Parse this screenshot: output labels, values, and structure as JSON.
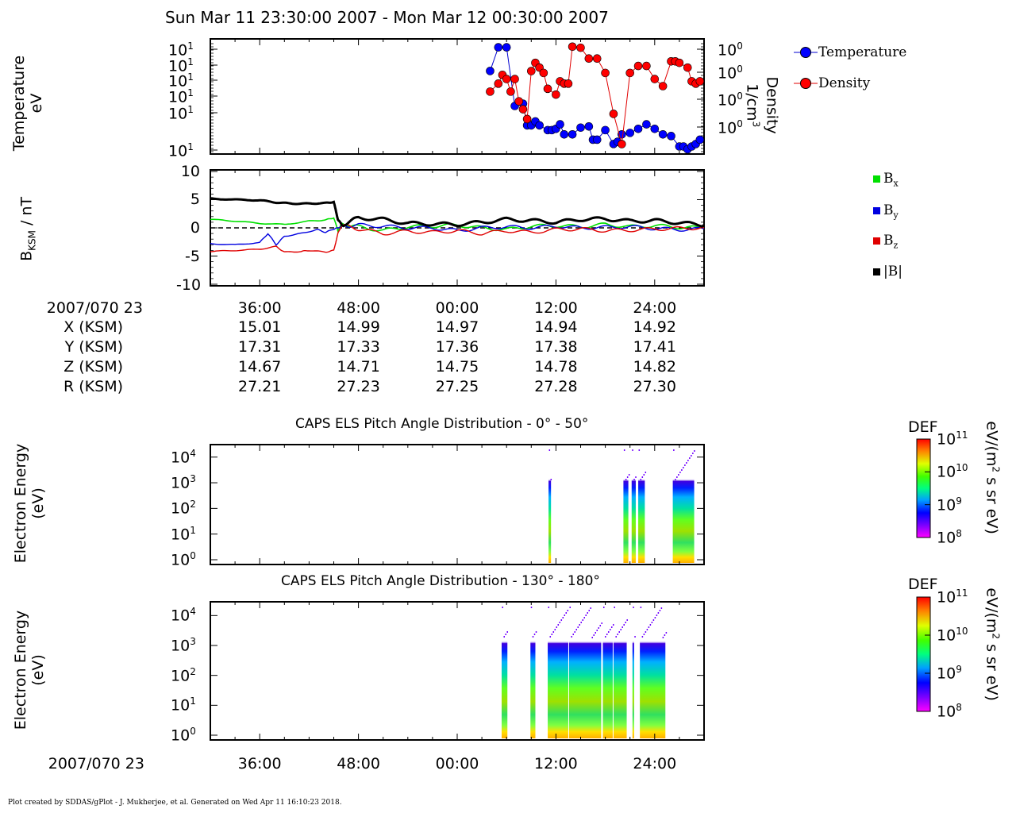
{
  "title": "Sun Mar 11 23:30:00 2007 - Mon Mar 12 00:30:00 2007",
  "footer": "Plot created by SDDAS/gPlot - J. Mukherjee, et al.  Generated on Wed Apr 11 16:10:23 2018.",
  "time_ticks": [
    "36:00",
    "48:00",
    "00:00",
    "12:00",
    "24:00"
  ],
  "date_label": "2007/070 23",
  "colors": {
    "bx": "#00e000",
    "by": "#0000e0",
    "bz": "#e00000",
    "bmag": "#000000",
    "temp": "#0000d0",
    "dens": "#e00000"
  },
  "ephemeris": {
    "rows": [
      {
        "label": "X (KSM)",
        "values": [
          "15.01",
          "14.99",
          "14.97",
          "14.94",
          "14.92"
        ]
      },
      {
        "label": "Y (KSM)",
        "values": [
          "17.31",
          "17.33",
          "17.36",
          "17.38",
          "17.41"
        ]
      },
      {
        "label": "Z (KSM)",
        "values": [
          "14.67",
          "14.71",
          "14.75",
          "14.78",
          "14.82"
        ]
      },
      {
        "label": "R (KSM)",
        "values": [
          "27.21",
          "27.23",
          "27.25",
          "27.28",
          "27.30"
        ]
      }
    ]
  },
  "panel1": {
    "ylabel_line1": "Temperature",
    "ylabel_line2": "eV",
    "y2label_line1": "Density",
    "y2label_line2": "1/cm",
    "y2label_sup": "3",
    "left_tick_base": "10",
    "left_tick_exp": "1",
    "right_tick_base": "10",
    "right_tick_exp": "0",
    "legend": [
      "Temperature",
      "Density"
    ]
  },
  "panel2": {
    "ylabel_main": "B",
    "ylabel_sub": "KSM",
    "ylabel_tail": " / nT",
    "yticks": [
      "10",
      "5",
      "0",
      "-5",
      "-10"
    ],
    "legend": [
      {
        "base": "B",
        "sub": "x"
      },
      {
        "base": "B",
        "sub": "y"
      },
      {
        "base": "B",
        "sub": "z"
      },
      {
        "base": "|B|",
        "sub": ""
      }
    ]
  },
  "spectro1": {
    "title": "CAPS ELS Pitch Angle Distribution - 0° - 50°",
    "ylabel_line1": "Electron Energy",
    "ylabel_line2": "(eV)"
  },
  "spectro2": {
    "title": "CAPS ELS Pitch Angle Distribution - 130° - 180°",
    "ylabel_line1": "Electron Energy",
    "ylabel_line2": "(eV)"
  },
  "energy_ticks": [
    {
      "base": "10",
      "exp": "4"
    },
    {
      "base": "10",
      "exp": "3"
    },
    {
      "base": "10",
      "exp": "2"
    },
    {
      "base": "10",
      "exp": "1"
    },
    {
      "base": "10",
      "exp": "0"
    }
  ],
  "colorbar": {
    "title": "DEF",
    "unit_pre": "eV/(m",
    "unit_sup": "2",
    "unit_post": " s sr eV)",
    "ticks": [
      {
        "base": "10",
        "exp": "11"
      },
      {
        "base": "10",
        "exp": "10"
      },
      {
        "base": "10",
        "exp": "9"
      },
      {
        "base": "10",
        "exp": "8"
      }
    ]
  },
  "chart_data": [
    {
      "type": "line",
      "panel": "Temperature / Density",
      "x_unit": "minutes after 23:30",
      "series": [
        {
          "name": "Temperature",
          "x": [
            34.0,
            35.0,
            36.0,
            37.0,
            38.0,
            38.5,
            39.0,
            39.5,
            40.0,
            41.0,
            41.5,
            42.0,
            42.5,
            43.0,
            44.0,
            45.0,
            46.0,
            46.5,
            47.0,
            48.0,
            49.0,
            49.5,
            50.0,
            51.0,
            52.0,
            53.0,
            54.0,
            55.0,
            56.0,
            57.0,
            57.5,
            58.0,
            58.5,
            59.0,
            59.5
          ],
          "y": [
            22,
            60,
            60,
            5,
            5.5,
            2.2,
            2.2,
            2.6,
            2.2,
            1.8,
            1.8,
            1.9,
            2.3,
            1.5,
            1.5,
            2.0,
            2.1,
            1.2,
            1.2,
            1.8,
            1.0,
            1.1,
            1.5,
            1.6,
            1.9,
            2.3,
            1.9,
            1.5,
            1.4,
            0.9,
            0.9,
            0.8,
            0.9,
            1.0,
            1.2
          ]
        },
        {
          "name": "Density",
          "x": [
            34.0,
            35.0,
            35.5,
            36.0,
            36.5,
            37.0,
            37.5,
            38.0,
            38.5,
            39.0,
            39.5,
            40.0,
            40.5,
            41.0,
            42.0,
            42.5,
            43.0,
            43.5,
            44.0,
            45.0,
            46.0,
            47.0,
            48.0,
            49.0,
            50.0,
            51.0,
            52.0,
            53.0,
            54.0,
            55.0,
            56.0,
            56.5,
            57.0,
            58.0,
            58.5,
            59.0,
            59.5
          ],
          "y": [
            1.5,
            1.8,
            2.2,
            2.0,
            1.5,
            2.0,
            1.2,
            1.0,
            0.8,
            2.4,
            2.9,
            2.6,
            2.3,
            1.6,
            1.4,
            1.9,
            1.8,
            1.8,
            4.2,
            4.1,
            3.2,
            3.2,
            2.3,
            0.9,
            0.45,
            2.3,
            2.7,
            2.7,
            2.0,
            1.7,
            3.0,
            3.0,
            2.9,
            2.6,
            1.9,
            1.8,
            1.9
          ]
        }
      ]
    },
    {
      "type": "line",
      "panel": "Magnetic field",
      "x_unit": "minutes after 23:30",
      "ylabel": "B KSM / nT",
      "ylim": [
        -10,
        10
      ],
      "series": [
        {
          "name": "Bx",
          "x": [
            0,
            3,
            6,
            9,
            12,
            14,
            15,
            15.5,
            16,
            18,
            21,
            24,
            27,
            30,
            33,
            36,
            39,
            42,
            45,
            48,
            51,
            54,
            57,
            60
          ],
          "y": [
            1.5,
            1.2,
            0.8,
            0.6,
            1.2,
            1.4,
            1.8,
            -0.5,
            0.8,
            0.2,
            -0.5,
            0.2,
            0.3,
            0.5,
            0.0,
            -0.3,
            0.3,
            0.4,
            0.2,
            0.6,
            0.2,
            0.4,
            0.1,
            0.0
          ]
        },
        {
          "name": "By",
          "x": [
            0,
            3,
            6,
            7,
            8,
            9,
            11,
            13,
            14,
            15,
            15.5,
            16,
            18,
            21,
            24,
            27,
            30,
            33,
            36,
            39,
            42,
            45,
            48,
            51,
            54,
            57,
            60
          ],
          "y": [
            -2.8,
            -3.0,
            -2.6,
            -1.0,
            -3.0,
            -1.5,
            -1.0,
            -0.3,
            -0.8,
            -0.2,
            0.0,
            0.3,
            0.5,
            0.3,
            0.0,
            0.0,
            -0.5,
            0.0,
            0.2,
            0.0,
            0.3,
            0.0,
            0.1,
            0.2,
            -0.1,
            -0.3,
            -0.2
          ]
        },
        {
          "name": "Bz",
          "x": [
            0,
            3,
            6,
            8,
            9,
            11,
            12,
            14,
            15,
            15.5,
            16,
            18,
            21,
            24,
            27,
            30,
            33,
            36,
            39,
            42,
            45,
            48,
            51,
            54,
            57,
            60
          ],
          "y": [
            -4.2,
            -4.0,
            -3.8,
            -3.3,
            -4.3,
            -4.2,
            -4.0,
            -4.3,
            -4.0,
            -1.0,
            0.5,
            -0.2,
            -1.0,
            -0.6,
            -0.8,
            -0.5,
            -1.0,
            -0.5,
            -0.8,
            -0.3,
            -0.2,
            -0.5,
            -0.4,
            -0.2,
            -0.1,
            0.0
          ]
        },
        {
          "name": "|B|",
          "x": [
            0,
            3,
            6,
            8,
            10,
            12,
            14,
            15,
            15.5,
            16,
            18,
            21,
            24,
            27,
            30,
            33,
            36,
            39,
            42,
            45,
            48,
            51,
            54,
            57,
            60
          ],
          "y": [
            5.2,
            5.0,
            4.9,
            4.5,
            4.3,
            4.3,
            4.4,
            4.6,
            1.5,
            0.5,
            1.8,
            1.5,
            0.8,
            0.7,
            0.6,
            1.0,
            1.5,
            1.3,
            1.0,
            1.5,
            1.6,
            1.2,
            1.3,
            0.9,
            0.5
          ]
        }
      ]
    },
    {
      "type": "heatmap",
      "panel": "CAPS ELS Pitch Angle Distribution - 0° - 50°",
      "x_unit": "minutes after 23:30",
      "ylim_eV": [
        1,
        20000
      ],
      "clim": [
        100000000.0,
        100000000000.0
      ],
      "active_intervals": [
        [
          41.1,
          41.4
        ],
        [
          50.2,
          50.8
        ],
        [
          51.2,
          51.7
        ],
        [
          52.0,
          52.8
        ],
        [
          56.2,
          58.8
        ]
      ]
    },
    {
      "type": "heatmap",
      "panel": "CAPS ELS Pitch Angle Distribution - 130° - 180°",
      "x_unit": "minutes after 23:30",
      "ylim_eV": [
        1,
        20000
      ],
      "clim": [
        100000000.0,
        100000000000.0
      ],
      "active_intervals": [
        [
          35.4,
          36.1
        ],
        [
          38.9,
          39.5
        ],
        [
          41.0,
          43.5
        ],
        [
          43.6,
          47.5
        ],
        [
          47.7,
          48.9
        ],
        [
          49.0,
          50.6
        ],
        [
          51.3,
          51.5
        ],
        [
          52.2,
          55.3
        ]
      ]
    }
  ]
}
